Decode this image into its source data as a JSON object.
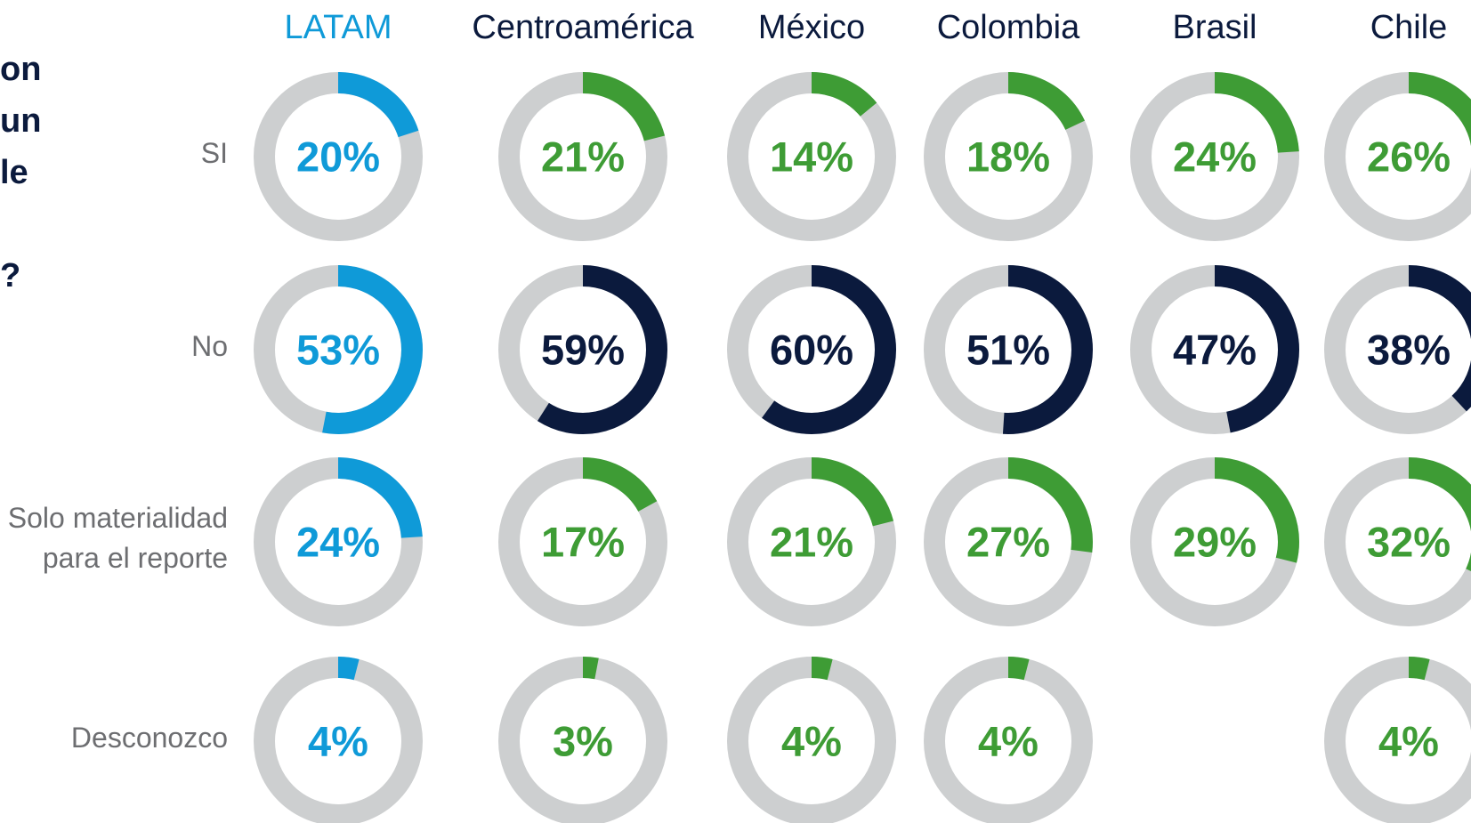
{
  "chart_data": {
    "type": "donut",
    "question_fragments": [
      "on",
      "un",
      "le",
      "?"
    ],
    "categories": [
      "LATAM",
      "Centroamérica",
      "México",
      "Colombia",
      "Brasil",
      "Chile"
    ],
    "category_colors": [
      "#0f9ad8",
      "#0b1a3d",
      "#0b1a3d",
      "#0b1a3d",
      "#0b1a3d",
      "#0b1a3d"
    ],
    "track_color": "#cdcfd0",
    "series": [
      {
        "name": "SI",
        "colors": [
          "#0f9ad8",
          "#3e9c35",
          "#3e9c35",
          "#3e9c35",
          "#3e9c35",
          "#3e9c35"
        ],
        "values": [
          20,
          21,
          14,
          18,
          24,
          26
        ],
        "value_labels": [
          "20%",
          "21%",
          "14%",
          "18%",
          "24%",
          "26%"
        ]
      },
      {
        "name": "No",
        "colors": [
          "#0f9ad8",
          "#0b1a3d",
          "#0b1a3d",
          "#0b1a3d",
          "#0b1a3d",
          "#0b1a3d"
        ],
        "values": [
          53,
          59,
          60,
          51,
          47,
          38
        ],
        "value_labels": [
          "53%",
          "59%",
          "60%",
          "51%",
          "47%",
          "38%"
        ]
      },
      {
        "name": "Solo materialidad para el reporte",
        "colors": [
          "#0f9ad8",
          "#3e9c35",
          "#3e9c35",
          "#3e9c35",
          "#3e9c35",
          "#3e9c35"
        ],
        "values": [
          24,
          17,
          21,
          27,
          29,
          32
        ],
        "value_labels": [
          "24%",
          "17%",
          "21%",
          "27%",
          "29%",
          "32%"
        ]
      },
      {
        "name": "Desconozco",
        "colors": [
          "#0f9ad8",
          "#3e9c35",
          "#3e9c35",
          "#3e9c35",
          "#3e9c35",
          "#3e9c35"
        ],
        "values": [
          4,
          3,
          4,
          4,
          null,
          4
        ],
        "value_labels": [
          "4%",
          "3%",
          "4%",
          "4%",
          null,
          "4%"
        ]
      }
    ]
  }
}
